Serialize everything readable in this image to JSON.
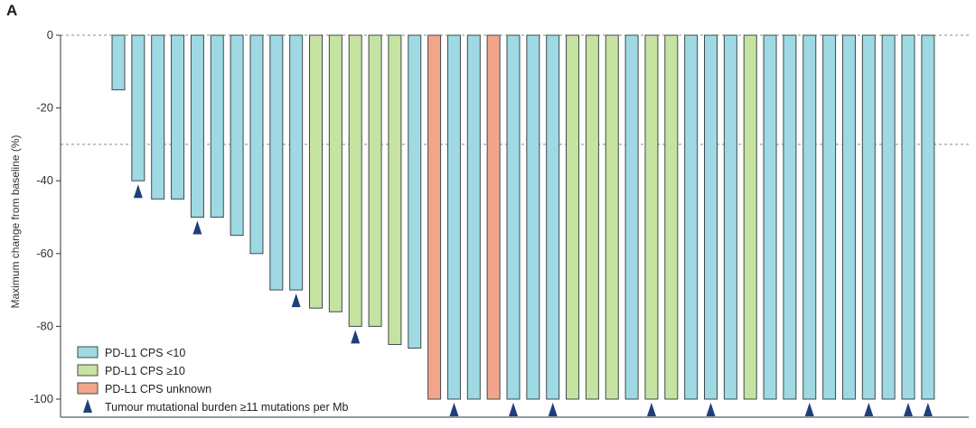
{
  "panel_label": "A",
  "chart_data": {
    "type": "bar",
    "title": "",
    "xlabel": "",
    "ylabel": "Maximum change from baseline (%)",
    "ylim": [
      -100,
      0
    ],
    "yticks": [
      0,
      -20,
      -40,
      -60,
      -80,
      -100
    ],
    "ytick_labels": [
      "0",
      "-20",
      "-40",
      "-60",
      "-80",
      "-100"
    ],
    "reference_lines": [
      0,
      -30
    ],
    "legend_position": "bottom-left",
    "colors": {
      "cps_lt10": "#9fd9e3",
      "cps_ge10": "#c7e3a1",
      "cps_unknown": "#f3a58c",
      "tmb_marker": "#1f3f7a",
      "bar_edge": "#3d4a4e"
    },
    "series_legend": [
      {
        "key": "cps_lt10",
        "label": "PD-L1 CPS <10"
      },
      {
        "key": "cps_ge10",
        "label": "PD-L1 CPS ≥10"
      },
      {
        "key": "cps_unknown",
        "label": "PD-L1 CPS unknown"
      }
    ],
    "marker_legend": "Tumour mutational burden ≥11 mutations per Mb",
    "bars": [
      {
        "value": -15,
        "group": "cps_lt10",
        "tmb": false
      },
      {
        "value": -40,
        "group": "cps_lt10",
        "tmb": true
      },
      {
        "value": -45,
        "group": "cps_lt10",
        "tmb": false
      },
      {
        "value": -45,
        "group": "cps_lt10",
        "tmb": false
      },
      {
        "value": -50,
        "group": "cps_lt10",
        "tmb": true
      },
      {
        "value": -50,
        "group": "cps_lt10",
        "tmb": false
      },
      {
        "value": -55,
        "group": "cps_lt10",
        "tmb": false
      },
      {
        "value": -60,
        "group": "cps_lt10",
        "tmb": false
      },
      {
        "value": -70,
        "group": "cps_lt10",
        "tmb": false
      },
      {
        "value": -70,
        "group": "cps_lt10",
        "tmb": true
      },
      {
        "value": -75,
        "group": "cps_ge10",
        "tmb": false
      },
      {
        "value": -76,
        "group": "cps_ge10",
        "tmb": false
      },
      {
        "value": -80,
        "group": "cps_ge10",
        "tmb": true
      },
      {
        "value": -80,
        "group": "cps_ge10",
        "tmb": false
      },
      {
        "value": -85,
        "group": "cps_ge10",
        "tmb": false
      },
      {
        "value": -86,
        "group": "cps_lt10",
        "tmb": false
      },
      {
        "value": -100,
        "group": "cps_unknown",
        "tmb": false
      },
      {
        "value": -100,
        "group": "cps_lt10",
        "tmb": true
      },
      {
        "value": -100,
        "group": "cps_lt10",
        "tmb": false
      },
      {
        "value": -100,
        "group": "cps_unknown",
        "tmb": false
      },
      {
        "value": -100,
        "group": "cps_lt10",
        "tmb": true
      },
      {
        "value": -100,
        "group": "cps_lt10",
        "tmb": false
      },
      {
        "value": -100,
        "group": "cps_lt10",
        "tmb": true
      },
      {
        "value": -100,
        "group": "cps_ge10",
        "tmb": false
      },
      {
        "value": -100,
        "group": "cps_ge10",
        "tmb": false
      },
      {
        "value": -100,
        "group": "cps_ge10",
        "tmb": false
      },
      {
        "value": -100,
        "group": "cps_lt10",
        "tmb": false
      },
      {
        "value": -100,
        "group": "cps_ge10",
        "tmb": true
      },
      {
        "value": -100,
        "group": "cps_ge10",
        "tmb": false
      },
      {
        "value": -100,
        "group": "cps_lt10",
        "tmb": false
      },
      {
        "value": -100,
        "group": "cps_lt10",
        "tmb": true
      },
      {
        "value": -100,
        "group": "cps_lt10",
        "tmb": false
      },
      {
        "value": -100,
        "group": "cps_ge10",
        "tmb": false
      },
      {
        "value": -100,
        "group": "cps_lt10",
        "tmb": false
      },
      {
        "value": -100,
        "group": "cps_lt10",
        "tmb": false
      },
      {
        "value": -100,
        "group": "cps_lt10",
        "tmb": true
      },
      {
        "value": -100,
        "group": "cps_lt10",
        "tmb": false
      },
      {
        "value": -100,
        "group": "cps_lt10",
        "tmb": false
      },
      {
        "value": -100,
        "group": "cps_lt10",
        "tmb": true
      },
      {
        "value": -100,
        "group": "cps_lt10",
        "tmb": false
      },
      {
        "value": -100,
        "group": "cps_lt10",
        "tmb": true
      },
      {
        "value": -100,
        "group": "cps_lt10",
        "tmb": true
      }
    ]
  }
}
